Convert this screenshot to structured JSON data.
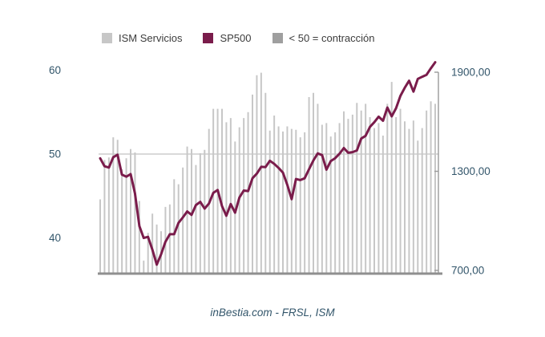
{
  "page": {
    "background": "#ffffff"
  },
  "legend": {
    "items": [
      {
        "label": "ISM Servicios",
        "color": "#c7c7c7"
      },
      {
        "label": "SP500",
        "color": "#7a1c4b"
      },
      {
        "label": "< 50 = contracción",
        "color": "#9f9f9f"
      }
    ]
  },
  "caption": "inBestia.com - FRSL, ISM",
  "colors": {
    "bar": "#c7c7c7",
    "line": "#7a1c4b",
    "gridline": "#c2c2c2",
    "bottom_axis": "#8f8f8f",
    "right_axis": "#9a9a9a",
    "tick_text": "#33566b",
    "legend_text": "#3c3c3c"
  },
  "chart_data": {
    "type": "bar",
    "subtype": "bar-plus-line-combo",
    "title": "",
    "xlabel": "",
    "ylabel": "",
    "x_tick_labels_visible": false,
    "n_points": 78,
    "gridline_at_left_value": 50,
    "annotation": "< 50 = contracción",
    "left_axis": {
      "tick_values": [
        40,
        50,
        60
      ],
      "tick_labels": [
        "40",
        "50",
        "60"
      ],
      "range": [
        35.84,
        61.2
      ]
    },
    "right_axis": {
      "tick_values": [
        700,
        1300,
        1900
      ],
      "tick_labels": [
        "700,00",
        "1300,00",
        "1900,00"
      ],
      "range": [
        685,
        1975
      ]
    },
    "series": [
      {
        "name": "ISM Servicios",
        "type": "bar",
        "axis": "left",
        "color": "#c7c7c7",
        "values": [
          44.6,
          49.3,
          49.6,
          52.0,
          51.7,
          48.2,
          49.5,
          50.6,
          50.2,
          44.4,
          37.3,
          40.6,
          42.9,
          41.6,
          40.8,
          43.7,
          44.0,
          47.0,
          46.4,
          48.4,
          50.9,
          50.6,
          48.7,
          50.1,
          50.5,
          53.0,
          55.4,
          55.4,
          55.4,
          53.8,
          54.3,
          51.5,
          53.2,
          54.3,
          55.0,
          57.1,
          59.4,
          59.7,
          57.3,
          52.8,
          54.6,
          53.3,
          52.7,
          53.3,
          53.0,
          52.9,
          52.0,
          52.6,
          56.8,
          57.3,
          56.0,
          53.5,
          53.7,
          52.1,
          52.6,
          53.7,
          55.1,
          54.2,
          54.7,
          56.1,
          55.2,
          56.0,
          54.4,
          53.1,
          53.7,
          52.2,
          56.0,
          58.6,
          54.4,
          55.4,
          53.9,
          53.0,
          54.0,
          51.6,
          53.1,
          55.2,
          56.3,
          56.0
        ]
      },
      {
        "name": "SP500",
        "type": "line",
        "axis": "right",
        "color": "#7a1c4b",
        "values": [
          1378.55,
          1330.63,
          1322.7,
          1385.59,
          1400.38,
          1280.0,
          1267.38,
          1282.83,
          1166.36,
          968.75,
          896.24,
          903.25,
          825.88,
          735.09,
          797.87,
          872.81,
          919.14,
          919.32,
          987.48,
          1020.62,
          1057.08,
          1036.19,
          1095.63,
          1115.1,
          1073.87,
          1104.49,
          1169.43,
          1186.69,
          1089.41,
          1030.71,
          1101.6,
          1049.33,
          1141.2,
          1183.26,
          1180.55,
          1257.64,
          1286.12,
          1327.22,
          1325.83,
          1363.61,
          1345.2,
          1320.64,
          1292.28,
          1218.89,
          1131.42,
          1253.3,
          1246.96,
          1257.6,
          1312.41,
          1365.68,
          1408.47,
          1397.91,
          1310.33,
          1362.16,
          1379.32,
          1406.58,
          1440.67,
          1412.16,
          1416.18,
          1426.19,
          1498.11,
          1514.68,
          1569.19,
          1597.57,
          1630.74,
          1606.28,
          1685.73,
          1632.97,
          1681.55,
          1756.54,
          1805.81,
          1848.36,
          1782.59,
          1859.45,
          1872.34,
          1883.95,
          1923.57,
          1960.23
        ]
      }
    ],
    "legend_position": "top",
    "grid": "single horizontal line at left-axis value 50"
  }
}
